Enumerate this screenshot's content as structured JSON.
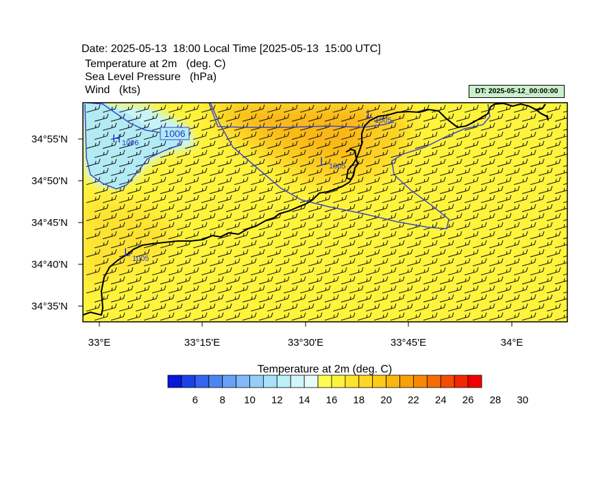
{
  "header": {
    "date_line": "Date: 2025-05-13  18:00 Local Time [2025-05-13  15:00 UTC]",
    "field_1": "Temperature at 2m   (deg. C)",
    "field_2": "Sea Level Pressure   (hPa)",
    "field_3": "Wind   (kts)",
    "dt_label": "DT: 2025-05-12_00:00:00"
  },
  "map": {
    "lat_ticks": [
      "34°55'N",
      "34°50'N",
      "34°45'N",
      "34°40'N",
      "34°35'N"
    ],
    "lon_ticks": [
      "33°E",
      "33°15'E",
      "33°30'E",
      "33°45'E",
      "34°E"
    ],
    "pressure_labels": [
      {
        "marker": "H",
        "value": "1006"
      },
      {
        "marker": "L",
        "value": "1005"
      },
      {
        "marker": "L",
        "value": "1005"
      },
      {
        "marker": "L",
        "value": "1005"
      }
    ],
    "contour_label": "1006",
    "colors": {
      "land_yellow": "#fff43c",
      "warm_orange": "#fbb714",
      "light_orange": "#fdd020",
      "cool_cyan": "#b2ebf4",
      "cyan_light": "#c6f5f8",
      "isobar": "#3a46c8",
      "coast": "#000000"
    }
  },
  "colorbar": {
    "title": "Temperature at 2m  (deg. C)",
    "labels": [
      "6",
      "8",
      "10",
      "12",
      "14",
      "16",
      "18",
      "20",
      "22",
      "24",
      "26",
      "28",
      "30"
    ],
    "colors": [
      "#0818d8",
      "#1c42e6",
      "#3466ee",
      "#4c86f2",
      "#68a2f6",
      "#80baf8",
      "#94cef8",
      "#a6e2fa",
      "#bcf0fa",
      "#d0f6f8",
      "#e6fcfa",
      "#fefc50",
      "#fff23c",
      "#fde42c",
      "#fcd822",
      "#fcca18",
      "#fbb610",
      "#f9a008",
      "#f88804",
      "#f66c02",
      "#f44c02",
      "#f22800",
      "#f00000"
    ]
  }
}
